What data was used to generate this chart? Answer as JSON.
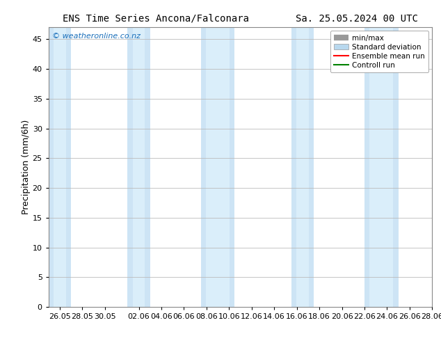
{
  "title_left": "ENS Time Series Ancona/Falconara",
  "title_right": "Sa. 25.05.2024 00 UTC",
  "ylabel": "Precipitation (mm/6h)",
  "watermark": "© weatheronline.co.nz",
  "ylim": [
    0,
    47
  ],
  "yticks": [
    0,
    5,
    10,
    15,
    20,
    25,
    30,
    35,
    40,
    45
  ],
  "x_tick_labels": [
    "26.05",
    "28.05",
    "30.05",
    "02.06",
    "04.06",
    "06.06",
    "08.06",
    "10.06",
    "12.06",
    "14.06",
    "16.06",
    "18.06",
    "20.06",
    "22.06",
    "24.06",
    "26.06",
    "28.06"
  ],
  "tick_positions": [
    1,
    3,
    5,
    8,
    10,
    12,
    14,
    16,
    18,
    20,
    22,
    24,
    26,
    28,
    30,
    32,
    34
  ],
  "xlim": [
    0,
    34
  ],
  "shaded_bands": [
    [
      0.0,
      2.0
    ],
    [
      7.0,
      9.0
    ],
    [
      13.5,
      16.5
    ],
    [
      21.5,
      23.5
    ],
    [
      28.0,
      31.0
    ]
  ],
  "band_color_outer": "#cde4f5",
  "band_color_inner": "#daeefa",
  "background_color": "#ffffff",
  "plot_bg_color": "#ffffff",
  "grid_color": "#bbbbbb",
  "title_fontsize": 10,
  "label_fontsize": 9,
  "tick_fontsize": 8,
  "watermark_color": "#1a6fba",
  "legend_entries": [
    "min/max",
    "Standard deviation",
    "Ensemble mean run",
    "Controll run"
  ],
  "legend_line_colors": [
    "#999999",
    "#b8d8ee",
    "#ff0000",
    "#008000"
  ]
}
